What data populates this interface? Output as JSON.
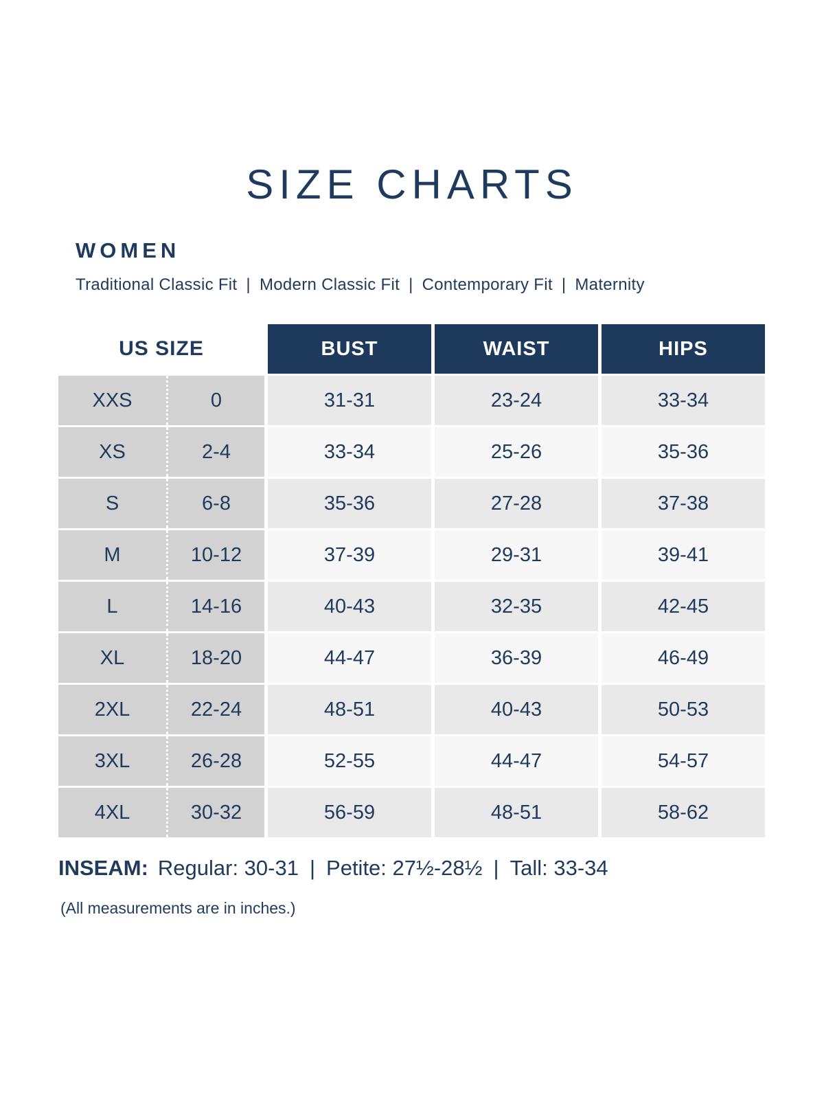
{
  "page": {
    "title": "SIZE CHARTS",
    "section": "WOMEN",
    "fit_separator": "|",
    "fit_types": [
      "Traditional Classic Fit",
      "Modern Classic Fit",
      "Contemporary Fit",
      "Maternity"
    ],
    "note": "(All measurements are in inches.)"
  },
  "colors": {
    "navy": "#1e3a5c",
    "header_bg": "#1d3a5c",
    "header_text": "#ffffff",
    "us_size_bg": "#d2d2d2",
    "row_odd_bg": "#e9e9e9",
    "row_even_bg": "#f7f7f7",
    "page_bg": "#ffffff"
  },
  "table": {
    "us_size_header": "US SIZE",
    "columns": [
      "BUST",
      "WAIST",
      "HIPS"
    ],
    "rows": [
      {
        "size": "XXS",
        "us": "0",
        "bust": "31-31",
        "waist": "23-24",
        "hips": "33-34"
      },
      {
        "size": "XS",
        "us": "2-4",
        "bust": "33-34",
        "waist": "25-26",
        "hips": "35-36"
      },
      {
        "size": "S",
        "us": "6-8",
        "bust": "35-36",
        "waist": "27-28",
        "hips": "37-38"
      },
      {
        "size": "M",
        "us": "10-12",
        "bust": "37-39",
        "waist": "29-31",
        "hips": "39-41"
      },
      {
        "size": "L",
        "us": "14-16",
        "bust": "40-43",
        "waist": "32-35",
        "hips": "42-45"
      },
      {
        "size": "XL",
        "us": "18-20",
        "bust": "44-47",
        "waist": "36-39",
        "hips": "46-49"
      },
      {
        "size": "2XL",
        "us": "22-24",
        "bust": "48-51",
        "waist": "40-43",
        "hips": "50-53"
      },
      {
        "size": "3XL",
        "us": "26-28",
        "bust": "52-55",
        "waist": "44-47",
        "hips": "54-57"
      },
      {
        "size": "4XL",
        "us": "30-32",
        "bust": "56-59",
        "waist": "48-51",
        "hips": "58-62"
      }
    ]
  },
  "inseam": {
    "label": "INSEAM:",
    "separator": "|",
    "entries": [
      "Regular: 30-31",
      "Petite: 27½-28½",
      "Tall: 33-34"
    ]
  }
}
